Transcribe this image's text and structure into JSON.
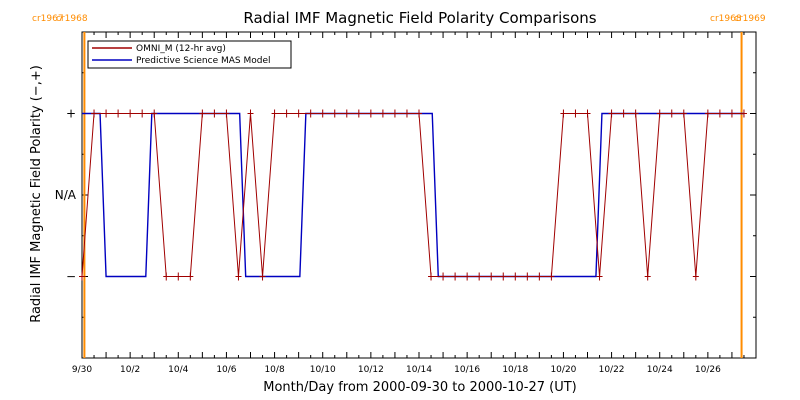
{
  "chart_data": {
    "type": "line",
    "title": "Radial IMF Magnetic Field Polarity Comparisons",
    "xlabel": "Month/Day from 2000-09-30 to 2000-10-27 (UT)",
    "ylabel": "Radial IMF Magnetic Field Polarity (−,+)",
    "x_tick_labels": [
      "9/30",
      "10/2",
      "10/4",
      "10/6",
      "10/8",
      "10/10",
      "10/12",
      "10/14",
      "10/16",
      "10/18",
      "10/20",
      "10/22",
      "10/24",
      "10/26"
    ],
    "x_tick_values": [
      0,
      2,
      4,
      6,
      8,
      10,
      12,
      14,
      16,
      18,
      20,
      22,
      24,
      26
    ],
    "xlim": [
      0,
      28
    ],
    "y_tick_labels": [
      "−",
      "N/A",
      "+"
    ],
    "y_tick_values": [
      -1,
      0,
      1
    ],
    "ylim": [
      -2,
      2
    ],
    "carrington_markers": [
      {
        "day": 0.1,
        "left_label": "cr1967",
        "right_label": "cr1968",
        "label_side": "left"
      },
      {
        "day": 27.4,
        "left_label": "cr1968",
        "right_label": "cr1969",
        "label_side": "right"
      }
    ],
    "colors": {
      "omni": "#a00000",
      "model": "#0000c0",
      "markers": "#ff8c00"
    },
    "series": [
      {
        "name": "OMNI_M (12-hr avg)",
        "x": [
          0,
          0.5,
          1,
          1.5,
          2,
          2.5,
          3,
          3.5,
          4,
          4.5,
          5,
          5.5,
          6,
          6.5,
          7,
          7.5,
          8,
          8.5,
          9,
          9.5,
          10,
          10.5,
          11,
          11.5,
          12,
          12.5,
          13,
          13.5,
          14,
          14.5,
          15,
          15.5,
          16,
          16.5,
          17,
          17.5,
          18,
          18.5,
          19,
          19.5,
          20,
          20.5,
          21,
          21.5,
          22,
          22.5,
          23,
          23.5,
          24,
          24.5,
          25,
          25.5,
          26,
          26.5,
          27,
          27.5
        ],
        "y": [
          -1,
          1,
          1,
          1,
          1,
          1,
          1,
          -1,
          -1,
          -1,
          1,
          1,
          1,
          -1,
          1,
          -1,
          1,
          1,
          1,
          1,
          1,
          1,
          1,
          1,
          1,
          1,
          1,
          1,
          1,
          -1,
          -1,
          -1,
          -1,
          -1,
          -1,
          -1,
          -1,
          -1,
          -1,
          -1,
          1,
          1,
          1,
          -1,
          1,
          1,
          1,
          -1,
          1,
          1,
          1,
          -1,
          1,
          1,
          1,
          1
        ]
      },
      {
        "name": "Predictive Science MAS Model",
        "step_x": [
          0,
          0.75,
          1.0,
          2.65,
          2.9,
          6.55,
          6.8,
          9.05,
          9.3,
          14.55,
          14.8,
          21.35,
          21.6,
          27.5
        ],
        "step_y": [
          1,
          1,
          -1,
          -1,
          1,
          1,
          -1,
          -1,
          1,
          1,
          -1,
          -1,
          1,
          1
        ]
      }
    ],
    "legend_placement": "top-left"
  }
}
